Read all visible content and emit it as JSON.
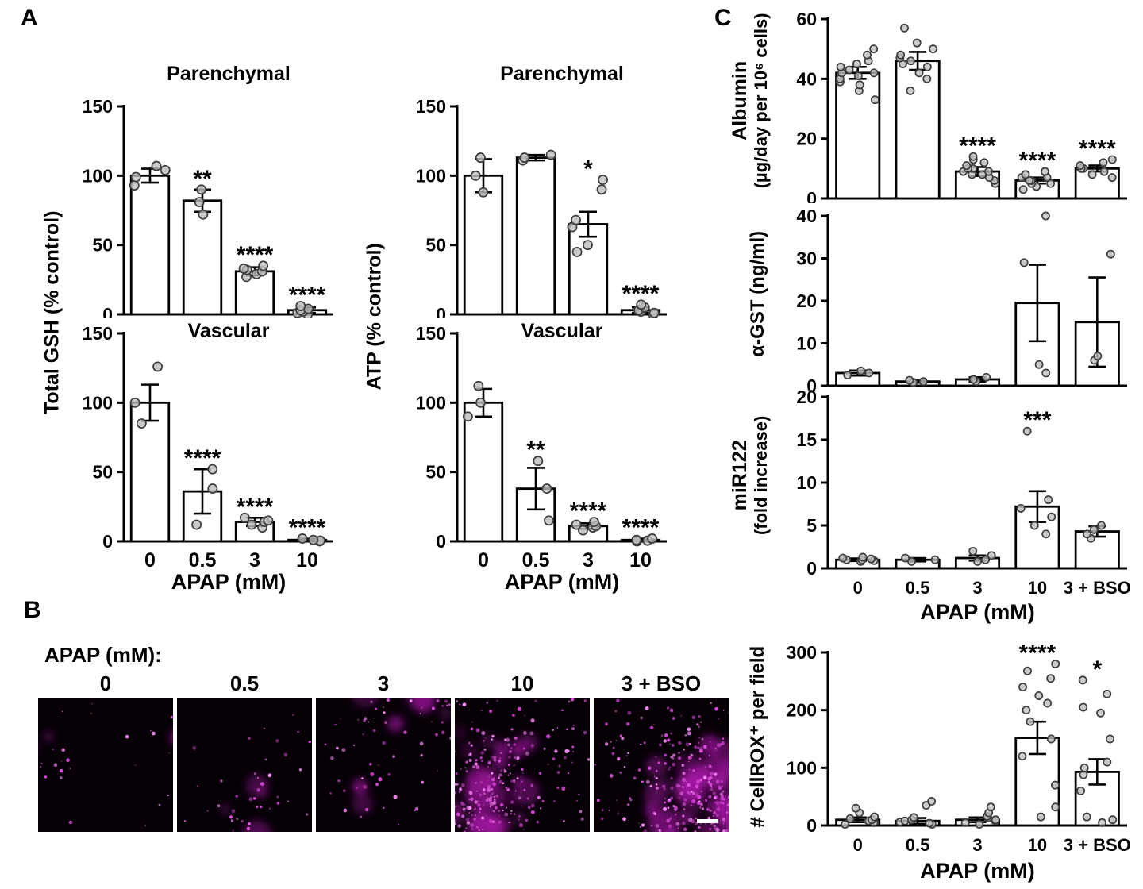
{
  "figure": {
    "panel_a": "A",
    "panel_b": "B",
    "panel_c": "C"
  },
  "panelB": {
    "row_label": "APAP (mM):",
    "stain_color": "#e040e0",
    "micrographs": [
      {
        "label": "0",
        "intensity": 0.06,
        "scalebar": false
      },
      {
        "label": "0.5",
        "intensity": 0.09,
        "scalebar": false
      },
      {
        "label": "3",
        "intensity": 0.17,
        "scalebar": false
      },
      {
        "label": "10",
        "intensity": 0.8,
        "scalebar": false
      },
      {
        "label": "3 + BSO",
        "intensity": 0.9,
        "scalebar": true
      }
    ]
  },
  "panelC": {
    "albumin_line1": "Albumin",
    "albumin_line2": "(µg/day per 10⁶ cells)",
    "mir_line1": "miR122",
    "mir_line2": "(fold increase)"
  },
  "chart_data": [
    {
      "type": "bar",
      "title": "Parenchymal",
      "ylabel": "Total GSH (% control)",
      "categories": [
        "0",
        "0.5",
        "3",
        "10"
      ],
      "ylim": [
        0,
        150
      ],
      "yticks": [
        0,
        50,
        100,
        150
      ],
      "values": [
        100,
        82,
        31,
        3
      ],
      "errors": [
        5,
        8,
        3,
        2
      ],
      "sig": [
        "",
        "**",
        "****",
        "****"
      ],
      "points": [
        [
          93,
          99,
          104,
          107
        ],
        [
          72,
          81,
          90
        ],
        [
          27,
          29,
          31,
          32,
          33,
          35
        ],
        [
          0,
          1,
          2,
          3,
          4,
          6
        ]
      ]
    },
    {
      "type": "bar",
      "title": "Parenchymal",
      "ylabel": "ATP (% control)",
      "categories": [
        "0",
        "0.5",
        "3",
        "10"
      ],
      "ylim": [
        0,
        150
      ],
      "yticks": [
        0,
        50,
        100,
        150
      ],
      "values": [
        100,
        113,
        65,
        3
      ],
      "errors": [
        12,
        2,
        9,
        2
      ],
      "sig": [
        "",
        "",
        "*",
        "****"
      ],
      "points": [
        [
          88,
          100,
          113
        ],
        [
          111,
          113,
          115
        ],
        [
          45,
          50,
          63,
          68,
          90,
          97
        ],
        [
          0,
          1,
          2,
          3,
          5,
          7
        ]
      ]
    },
    {
      "type": "bar",
      "title": "Vascular",
      "ylabel": "Total GSH (% control)",
      "xlabel": "APAP (mM)",
      "categories": [
        "0",
        "0.5",
        "3",
        "10"
      ],
      "ylim": [
        0,
        150
      ],
      "yticks": [
        0,
        50,
        100,
        150
      ],
      "values": [
        100,
        36,
        14,
        1
      ],
      "errors": [
        13,
        16,
        3,
        1
      ],
      "sig": [
        "",
        "****",
        "****",
        "****"
      ],
      "points": [
        [
          85,
          100,
          126
        ],
        [
          12,
          38,
          52
        ],
        [
          10,
          12,
          14,
          15,
          17
        ],
        [
          0,
          0.5,
          1,
          2
        ]
      ]
    },
    {
      "type": "bar",
      "title": "Vascular",
      "ylabel": "ATP (% control)",
      "xlabel": "APAP (mM)",
      "categories": [
        "0",
        "0.5",
        "3",
        "10"
      ],
      "ylim": [
        0,
        150
      ],
      "yticks": [
        0,
        50,
        100,
        150
      ],
      "values": [
        100,
        38,
        11,
        1
      ],
      "errors": [
        10,
        15,
        2,
        1
      ],
      "sig": [
        "",
        "**",
        "****",
        "****"
      ],
      "points": [
        [
          90,
          100,
          112
        ],
        [
          15,
          38,
          58
        ],
        [
          8,
          10,
          11,
          12,
          14
        ],
        [
          0,
          0.5,
          1,
          2
        ]
      ]
    },
    {
      "type": "bar",
      "ylabel": "Albumin (µg/day per 10⁶ cells)",
      "categories": [
        "0",
        "0.5",
        "3",
        "10",
        "3 + BSO"
      ],
      "ylim": [
        0,
        60
      ],
      "yticks": [
        0,
        20,
        40,
        60
      ],
      "values": [
        42,
        46,
        9,
        6,
        10
      ],
      "errors": [
        2,
        3,
        1.5,
        1,
        1
      ],
      "sig": [
        "",
        "",
        "****",
        "****",
        "****"
      ],
      "points": [
        [
          33,
          36,
          38,
          39,
          40,
          41,
          42,
          42,
          43,
          44,
          45,
          46,
          48,
          50
        ],
        [
          36,
          40,
          42,
          44,
          45,
          46,
          47,
          48,
          50,
          52,
          57
        ],
        [
          5,
          6,
          7,
          8,
          8,
          9,
          9,
          10,
          10,
          11,
          12,
          13,
          14
        ],
        [
          3,
          4,
          5,
          5,
          6,
          6,
          7,
          7,
          8,
          9
        ],
        [
          7,
          8,
          9,
          10,
          10,
          11,
          12,
          13
        ]
      ]
    },
    {
      "type": "bar",
      "ylabel": "α-GST (ng/ml)",
      "categories": [
        "0",
        "0.5",
        "3",
        "10",
        "3 + BSO"
      ],
      "ylim": [
        0,
        40
      ],
      "yticks": [
        0,
        10,
        20,
        30,
        40
      ],
      "values": [
        3,
        1,
        1.5,
        19.5,
        15
      ],
      "errors": [
        0.6,
        0.3,
        0.5,
        9,
        10.5
      ],
      "sig": [
        "",
        "",
        "",
        "",
        ""
      ],
      "points": [
        [
          2.5,
          3,
          3.5
        ],
        [
          0.8,
          1,
          1.3
        ],
        [
          1,
          1.5,
          2
        ],
        [
          3,
          5,
          29,
          40
        ],
        [
          6,
          7,
          31
        ]
      ]
    },
    {
      "type": "bar",
      "ylabel": "miR122 (fold increase)",
      "xlabel": "APAP (mM)",
      "categories": [
        "0",
        "0.5",
        "3",
        "10",
        "3 + BSO"
      ],
      "ylim": [
        0,
        20
      ],
      "yticks": [
        0,
        5,
        10,
        15,
        20
      ],
      "values": [
        1,
        1,
        1.2,
        7.2,
        4.3
      ],
      "errors": [
        0.15,
        0.2,
        0.3,
        1.8,
        0.6
      ],
      "sig": [
        "",
        "",
        "",
        "***",
        ""
      ],
      "points": [
        [
          0.8,
          0.9,
          1,
          1,
          1.1,
          1.2,
          1.3
        ],
        [
          0.8,
          1,
          1.2
        ],
        [
          0.8,
          1,
          1.5,
          2
        ],
        [
          4,
          5,
          6,
          7,
          8,
          16
        ],
        [
          3.5,
          4,
          4.5,
          5
        ]
      ]
    },
    {
      "type": "bar",
      "ylabel": "# CellROX⁺ per field",
      "xlabel": "APAP (mM)",
      "categories": [
        "0",
        "0.5",
        "3",
        "10",
        "3 + BSO"
      ],
      "ylim": [
        0,
        300
      ],
      "yticks": [
        0,
        100,
        200,
        300
      ],
      "values": [
        10,
        8,
        10,
        152,
        93
      ],
      "errors": [
        4,
        5,
        4,
        28,
        22
      ],
      "sig": [
        "",
        "",
        "",
        "****",
        "*"
      ],
      "points": [
        [
          2,
          5,
          8,
          10,
          12,
          15,
          22,
          30
        ],
        [
          2,
          4,
          6,
          8,
          10,
          14,
          35,
          42
        ],
        [
          2,
          5,
          8,
          10,
          13,
          16,
          22,
          32
        ],
        [
          15,
          32,
          70,
          120,
          150,
          180,
          200,
          212,
          225,
          240,
          255,
          268,
          280
        ],
        [
          5,
          10,
          15,
          60,
          88,
          100,
          110,
          150,
          195,
          205,
          228,
          252
        ]
      ]
    }
  ]
}
